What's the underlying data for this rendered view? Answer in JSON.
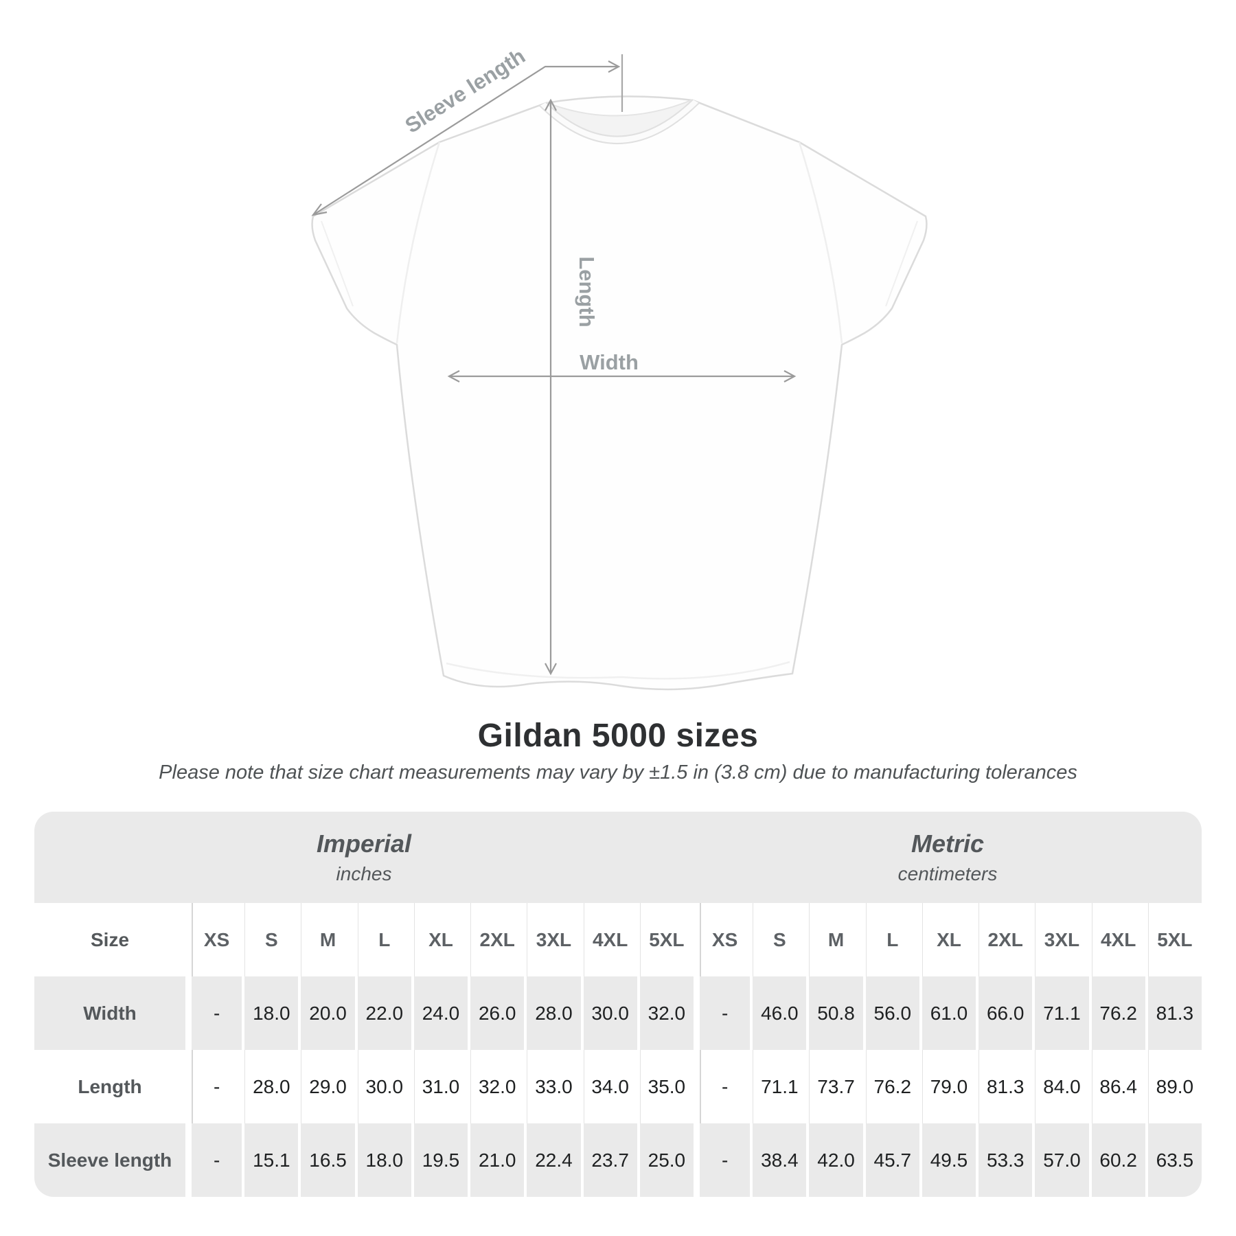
{
  "title": "Gildan 5000 sizes",
  "subtitle": "Please note that size chart measurements may vary by ±1.5 in (3.8 cm) due to manufacturing tolerances",
  "diagram": {
    "sleeve_length_label": "Sleeve length",
    "length_label": "Length",
    "width_label": "Width"
  },
  "colors": {
    "table_band": "#eaeaea",
    "row_stripe": "#eaeaea",
    "separator": "#e3e3e3",
    "dimension_line": "#9b9b9b",
    "dimension_label": "#9aa0a3",
    "number_text": "#1e2021",
    "label_text": "#54585b",
    "title_text": "#2e3032"
  },
  "table": {
    "unit_groups": [
      {
        "label": "Imperial",
        "sublabel": "inches"
      },
      {
        "label": "Metric",
        "sublabel": "centimeters"
      }
    ],
    "size_header": "Size",
    "sizes": [
      "XS",
      "S",
      "M",
      "L",
      "XL",
      "2XL",
      "3XL",
      "4XL",
      "5XL"
    ],
    "rows": [
      {
        "label": "Width",
        "imperial": [
          "-",
          "18.0",
          "20.0",
          "22.0",
          "24.0",
          "26.0",
          "28.0",
          "30.0",
          "32.0"
        ],
        "metric": [
          "-",
          "46.0",
          "50.8",
          "56.0",
          "61.0",
          "66.0",
          "71.1",
          "76.2",
          "81.3"
        ]
      },
      {
        "label": "Length",
        "imperial": [
          "-",
          "28.0",
          "29.0",
          "30.0",
          "31.0",
          "32.0",
          "33.0",
          "34.0",
          "35.0"
        ],
        "metric": [
          "-",
          "71.1",
          "73.7",
          "76.2",
          "79.0",
          "81.3",
          "84.0",
          "86.4",
          "89.0"
        ]
      },
      {
        "label": "Sleeve length",
        "imperial": [
          "-",
          "15.1",
          "16.5",
          "18.0",
          "19.5",
          "21.0",
          "22.4",
          "23.7",
          "25.0"
        ],
        "metric": [
          "-",
          "38.4",
          "42.0",
          "45.7",
          "49.5",
          "53.3",
          "57.0",
          "60.2",
          "63.5"
        ]
      }
    ]
  }
}
